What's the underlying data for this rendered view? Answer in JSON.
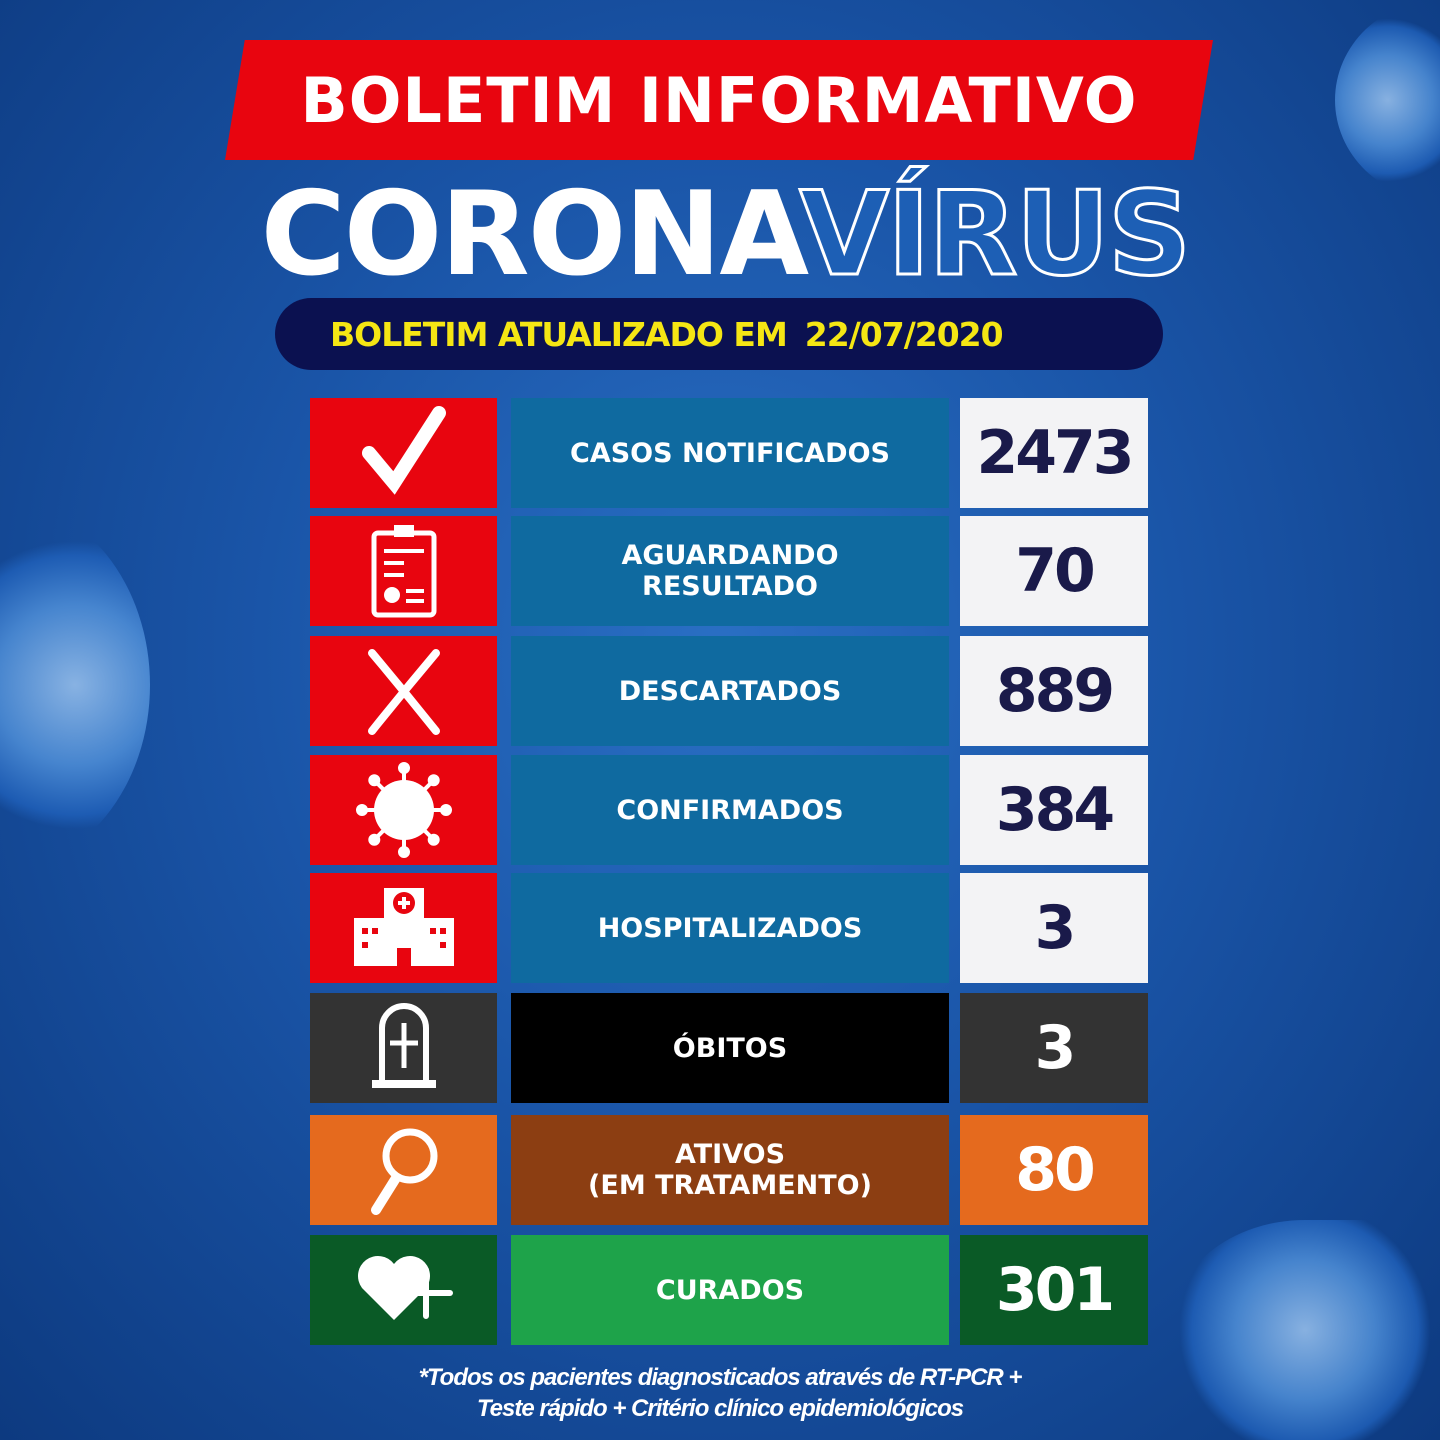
{
  "header": {
    "banner": "BOLETIM INFORMATIVO",
    "title_part1": "CORONA",
    "title_part2": "VÍRUS",
    "updated_label": "BOLETIM ATUALIZADO EM",
    "updated_date": "22/07/2020"
  },
  "rows": [
    {
      "icon": "check-icon",
      "label": "CASOS NOTIFICADOS",
      "label2": "",
      "value": "2473",
      "colors": {
        "icon_bg": "#e8050f",
        "label_bg": "#0f6aa0",
        "value_bg": "#f3f3f5",
        "value_text": "#1a1a4a"
      }
    },
    {
      "icon": "clipboard-report-icon",
      "label": "AGUARDANDO",
      "label2": "RESULTADO",
      "value": "70",
      "colors": {
        "icon_bg": "#e8050f",
        "label_bg": "#0f6aa0",
        "value_bg": "#f3f3f5",
        "value_text": "#1a1a4a"
      }
    },
    {
      "icon": "x-icon",
      "label": "DESCARTADOS",
      "label2": "",
      "value": "889",
      "colors": {
        "icon_bg": "#e8050f",
        "label_bg": "#0f6aa0",
        "value_bg": "#f3f3f5",
        "value_text": "#1a1a4a"
      }
    },
    {
      "icon": "virus-icon",
      "label": "CONFIRMADOS",
      "label2": "",
      "value": "384",
      "colors": {
        "icon_bg": "#e8050f",
        "label_bg": "#0f6aa0",
        "value_bg": "#f3f3f5",
        "value_text": "#1a1a4a"
      }
    },
    {
      "icon": "hospital-icon",
      "label": "HOSPITALIZADOS",
      "label2": "",
      "value": "3",
      "colors": {
        "icon_bg": "#e8050f",
        "label_bg": "#0f6aa0",
        "value_bg": "#f3f3f5",
        "value_text": "#1a1a4a"
      }
    },
    {
      "icon": "tombstone-icon",
      "label": "ÓBITOS",
      "label2": "",
      "value": "3",
      "colors": {
        "icon_bg": "#333333",
        "label_bg": "#000000",
        "value_bg": "#333333",
        "value_text": "#ffffff"
      }
    },
    {
      "icon": "magnifier-icon",
      "label": "ATIVOS",
      "label2": "(EM TRATAMENTO)",
      "value": "80",
      "colors": {
        "icon_bg": "#e56a1e",
        "label_bg": "#8c3e12",
        "value_bg": "#e56a1e",
        "value_text": "#ffffff"
      }
    },
    {
      "icon": "heart-plus-icon",
      "label": "CURADOS",
      "label2": "",
      "value": "301",
      "colors": {
        "icon_bg": "#0a5a26",
        "label_bg": "#1ea34a",
        "value_bg": "#0a5a26",
        "value_text": "#ffffff"
      }
    }
  ],
  "footnote": {
    "line1": "*Todos os pacientes diagnosticados através de RT-PCR +",
    "line2": "Teste rápido + Critério clínico epidemiológicos"
  }
}
